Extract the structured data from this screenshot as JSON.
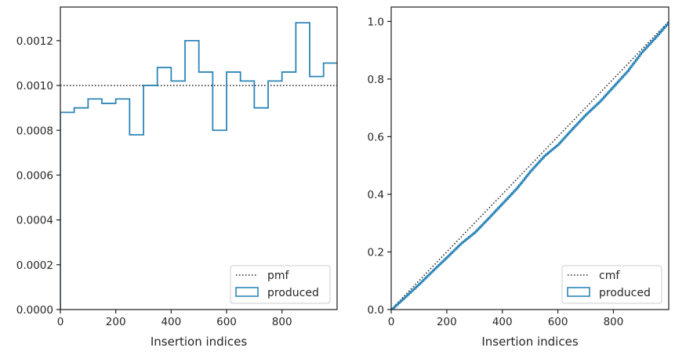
{
  "colors": {
    "hist": "#2e86b8",
    "ref": "#222222",
    "axes": "#262626"
  },
  "chart_data": [
    {
      "type": "step",
      "title": "",
      "xlabel": "Insertion indices",
      "ylabel": "",
      "xlim": [
        0,
        999
      ],
      "ylim": [
        0,
        0.00135
      ],
      "xticks": [
        0,
        200,
        400,
        600,
        800
      ],
      "xtick_labels": [
        "0",
        "200",
        "400",
        "600",
        "800"
      ],
      "yticks": [
        0,
        0.0002,
        0.0004,
        0.0006,
        0.0008,
        0.001,
        0.0012
      ],
      "ytick_labels": [
        "0.0000",
        "0.0002",
        "0.0004",
        "0.0006",
        "0.0008",
        "0.0010",
        "0.0012"
      ],
      "grid": false,
      "legend_position": "lower right",
      "reference": {
        "name": "pmf",
        "style": "dotted",
        "value": 0.001
      },
      "series": [
        {
          "name": "produced",
          "bin_edges": [
            0,
            50,
            100,
            150,
            200,
            250,
            300,
            350,
            400,
            450,
            500,
            550,
            600,
            650,
            700,
            750,
            800,
            850,
            900,
            950,
            1000
          ],
          "values": [
            0.00088,
            0.0009,
            0.00094,
            0.00092,
            0.00094,
            0.00078,
            0.001,
            0.00108,
            0.00102,
            0.0012,
            0.00106,
            0.0008,
            0.00106,
            0.00102,
            0.0009,
            0.00102,
            0.00106,
            0.00128,
            0.00104,
            0.0011
          ]
        }
      ]
    },
    {
      "type": "line",
      "title": "",
      "xlabel": "Insertion indices",
      "ylabel": "",
      "xlim": [
        0,
        999
      ],
      "ylim": [
        0,
        1.05
      ],
      "xticks": [
        0,
        200,
        400,
        600,
        800
      ],
      "xtick_labels": [
        "0",
        "200",
        "400",
        "600",
        "800"
      ],
      "yticks": [
        0,
        0.2,
        0.4,
        0.6,
        0.8,
        1.0
      ],
      "ytick_labels": [
        "0.0",
        "0.2",
        "0.4",
        "0.6",
        "0.8",
        "1.0"
      ],
      "grid": false,
      "legend_position": "lower right",
      "reference": {
        "name": "cmf",
        "style": "dotted",
        "x": [
          0,
          999
        ],
        "y": [
          0,
          1.0
        ]
      },
      "series": [
        {
          "name": "produced",
          "x": [
            0,
            50,
            100,
            150,
            200,
            250,
            300,
            350,
            400,
            450,
            500,
            550,
            600,
            650,
            700,
            750,
            800,
            850,
            900,
            950,
            1000
          ],
          "y": [
            0,
            0.044,
            0.089,
            0.136,
            0.182,
            0.229,
            0.268,
            0.318,
            0.369,
            0.42,
            0.48,
            0.533,
            0.573,
            0.626,
            0.677,
            0.722,
            0.775,
            0.828,
            0.892,
            0.944,
            0.999
          ]
        }
      ]
    }
  ]
}
